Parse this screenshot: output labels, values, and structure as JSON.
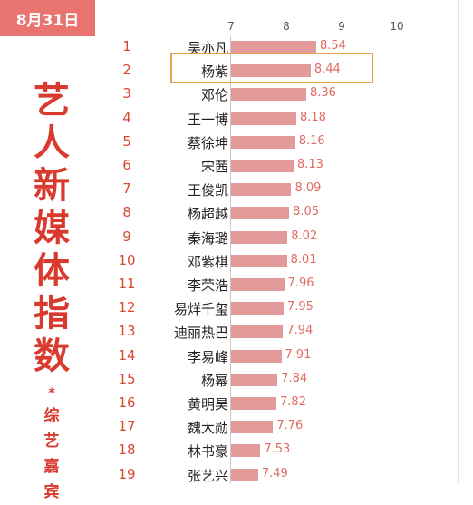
{
  "date_badge": "8月31日",
  "side_title": {
    "main": [
      "艺",
      "人",
      "新",
      "媒",
      "体",
      "指",
      "数"
    ],
    "mark": "*",
    "sub": [
      "综",
      "艺",
      "嘉",
      "宾"
    ]
  },
  "colors": {
    "badge": "#e8736f",
    "title": "#d93a2e",
    "bar": "#e29a9a",
    "value": "#e06a63",
    "highlight": "#e6a14a"
  },
  "chart_data": {
    "type": "bar",
    "orientation": "horizontal",
    "x_ticks": [
      7,
      8,
      9,
      10
    ],
    "xlim": [
      7,
      10
    ],
    "ranks": [
      1,
      2,
      3,
      4,
      5,
      6,
      7,
      8,
      9,
      10,
      11,
      12,
      13,
      14,
      15,
      16,
      17,
      18,
      19
    ],
    "categories": [
      "吴亦凡",
      "杨紫",
      "邓伦",
      "王一博",
      "蔡徐坤",
      "宋茜",
      "王俊凯",
      "杨超越",
      "秦海璐",
      "邓紫棋",
      "李荣浩",
      "易烊千玺",
      "迪丽热巴",
      "李易峰",
      "杨幂",
      "黄明昊",
      "魏大勋",
      "林书豪",
      "张艺兴"
    ],
    "values": [
      8.54,
      8.44,
      8.36,
      8.18,
      8.16,
      8.13,
      8.09,
      8.05,
      8.02,
      8.01,
      7.96,
      7.95,
      7.94,
      7.91,
      7.84,
      7.82,
      7.76,
      7.53,
      7.49
    ],
    "value_labels": [
      "8.54",
      "8.44",
      "8.36",
      "8.18",
      "8.16",
      "8.13",
      "8.09",
      "8.05",
      "8.02",
      "8.01",
      "7.96",
      "7.95",
      "7.94",
      "7.91",
      "7.84",
      "7.82",
      "7.76",
      "7.53",
      "7.49"
    ],
    "highlighted_category": "杨紫"
  }
}
